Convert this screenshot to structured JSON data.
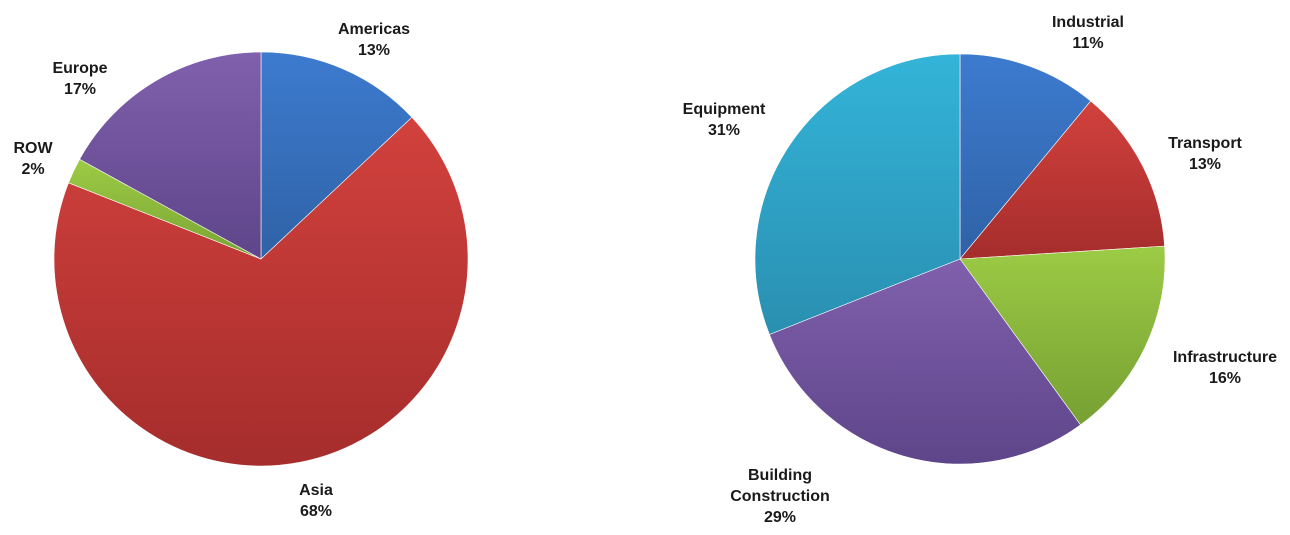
{
  "chart_data": [
    {
      "type": "pie",
      "title": "",
      "start_angle_deg": 0,
      "direction": "clockwise",
      "slices": [
        {
          "label": "Americas",
          "value": 13,
          "display": "13%",
          "color": "#3d7bcf",
          "color_dark": "#2f62a6"
        },
        {
          "label": "Asia",
          "value": 68,
          "display": "68%",
          "color": "#d2413d",
          "color_dark": "#a52d2c"
        },
        {
          "label": "ROW",
          "value": 2,
          "display": "2%",
          "color": "#9ccb45",
          "color_dark": "#7aa433"
        },
        {
          "label": "Europe",
          "value": 17,
          "display": "17%",
          "color": "#8060ad",
          "color_dark": "#5e4589"
        }
      ]
    },
    {
      "type": "pie",
      "title": "",
      "start_angle_deg": 0,
      "direction": "clockwise",
      "slices": [
        {
          "label": "Industrial",
          "value": 11,
          "display": "11%",
          "color": "#3d7bcf",
          "color_dark": "#2f62a6"
        },
        {
          "label": "Transport",
          "value": 13,
          "display": "13%",
          "color": "#d2413d",
          "color_dark": "#a52d2c"
        },
        {
          "label": "Infrastructure",
          "value": 16,
          "display": "16%",
          "color": "#9ccb45",
          "color_dark": "#76a032"
        },
        {
          "label": "Building Construction",
          "value": 29,
          "display": "29%",
          "color": "#8060ad",
          "color_dark": "#5e4589"
        },
        {
          "label": "Equipment",
          "value": 31,
          "display": "31%",
          "color": "#33b4d8",
          "color_dark": "#2a8fb1"
        }
      ]
    }
  ]
}
